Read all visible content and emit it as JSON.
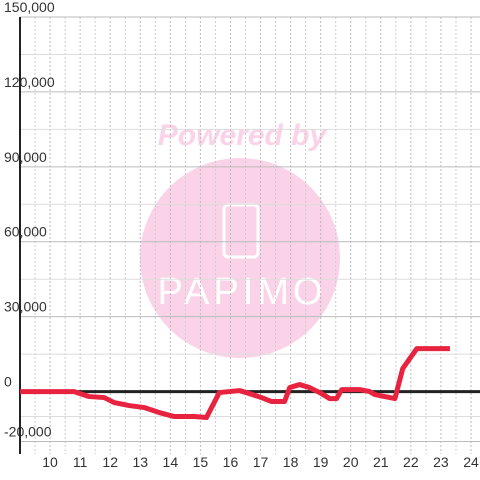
{
  "chart_data": {
    "type": "line",
    "watermark": {
      "top": "Powered by",
      "logo": "PAPIMO"
    },
    "x": [
      9.0,
      10.8,
      11.3,
      11.8,
      12.13,
      12.63,
      13.13,
      13.63,
      14.13,
      14.8,
      15.2,
      15.63,
      16.3,
      16.63,
      17.03,
      17.37,
      17.8,
      17.97,
      18.3,
      18.63,
      18.97,
      19.3,
      19.53,
      19.7,
      20.3,
      20.63,
      20.8,
      21.47,
      21.73,
      22.13,
      22.2,
      23.3
    ],
    "series": [
      {
        "color": "#e8233f",
        "values": [
          0,
          0,
          -2000,
          -2400,
          -4400,
          -5600,
          -6400,
          -8400,
          -10000,
          -10000,
          -10400,
          -400,
          400,
          -800,
          -2400,
          -4000,
          -4000,
          1600,
          2800,
          1600,
          -400,
          -2800,
          -2800,
          800,
          800,
          0,
          -1200,
          -2800,
          9200,
          16000,
          17200,
          17200
        ]
      }
    ],
    "xlim": [
      9,
      24.3
    ],
    "xticks": [
      10,
      11,
      12,
      13,
      14,
      15,
      16,
      17,
      18,
      19,
      20,
      21,
      22,
      23,
      24
    ],
    "ylim": [
      -25000,
      150000
    ],
    "yticks": [
      {
        "value": -20000,
        "label": "-20,000"
      },
      0,
      {
        "value": 30000,
        "label": "30,000"
      },
      {
        "value": 60000,
        "label": "60,000"
      },
      {
        "value": 90000,
        "label": "90,000"
      },
      {
        "value": 120000,
        "label": "120,000"
      },
      {
        "value": 150000,
        "label": "150,000"
      }
    ],
    "grid": true
  }
}
